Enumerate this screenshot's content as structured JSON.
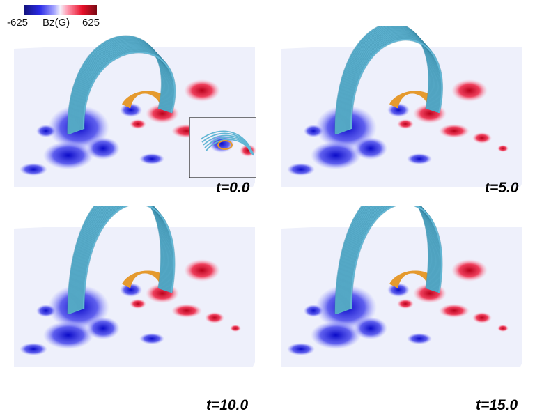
{
  "colorbar": {
    "min_label": "-625",
    "max_label": "625",
    "quantity": "Bz(G)",
    "colors": [
      "#12127a",
      "#2a2ae6",
      "#f4f2fb",
      "#e8102a",
      "#7a0a14"
    ]
  },
  "panels": [
    {
      "time": "t=0.0",
      "rope_height": 0.55,
      "has_inset": true
    },
    {
      "time": "t=5.0",
      "rope_height": 0.75,
      "has_inset": false
    },
    {
      "time": "t=10.0",
      "rope_height": 1.0,
      "has_inset": false
    },
    {
      "time": "t=15.0",
      "rope_height": 1.0,
      "has_inset": false
    }
  ],
  "colors": {
    "rope": "#62b6d4",
    "rope_dark": "#2f7f9c",
    "core": "#e59a2e",
    "plane": "#eef0fb"
  }
}
